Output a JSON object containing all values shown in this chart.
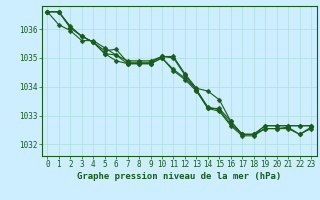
{
  "background_color": "#cceeff",
  "plot_bg_color": "#cceeff",
  "grid_color": "#aadddd",
  "line_color": "#1a5c1a",
  "marker": "D",
  "markersize": 2.5,
  "linewidth": 0.8,
  "xlabel": "Graphe pression niveau de la mer (hPa)",
  "xlabel_fontsize": 6.5,
  "tick_fontsize": 5.5,
  "ylim": [
    1031.6,
    1036.8
  ],
  "xlim": [
    -0.5,
    23.5
  ],
  "yticks": [
    1032,
    1033,
    1034,
    1035,
    1036
  ],
  "xticks": [
    0,
    1,
    2,
    3,
    4,
    5,
    6,
    7,
    8,
    9,
    10,
    11,
    12,
    13,
    14,
    15,
    16,
    17,
    18,
    19,
    20,
    21,
    22,
    23
  ],
  "series": [
    [
      1036.6,
      1036.6,
      1036.1,
      1035.75,
      1035.55,
      1035.25,
      1035.3,
      1034.85,
      1034.85,
      1034.85,
      1035.05,
      1035.05,
      1034.45,
      1033.95,
      1033.85,
      1033.55,
      1032.8,
      1032.35,
      1032.35,
      1032.65,
      1032.65,
      1032.65,
      1032.65,
      1032.65
    ],
    [
      1036.6,
      1036.6,
      1036.05,
      1035.75,
      1035.55,
      1035.15,
      1035.1,
      1034.9,
      1034.9,
      1034.9,
      1035.05,
      1035.0,
      1034.4,
      1033.9,
      1033.25,
      1033.25,
      1032.8,
      1032.35,
      1032.35,
      1032.65,
      1032.65,
      1032.65,
      1032.65,
      1032.65
    ],
    [
      1036.6,
      1036.15,
      1035.95,
      1035.6,
      1035.6,
      1035.35,
      1035.1,
      1034.8,
      1034.8,
      1034.8,
      1035.0,
      1034.6,
      1034.3,
      1033.9,
      1033.3,
      1033.2,
      1032.7,
      1032.35,
      1032.35,
      1032.55,
      1032.55,
      1032.6,
      1032.35,
      1032.6
    ],
    [
      1036.6,
      1036.6,
      1036.05,
      1035.75,
      1035.55,
      1035.15,
      1034.9,
      1034.8,
      1034.8,
      1034.8,
      1035.0,
      1034.55,
      1034.25,
      1033.85,
      1033.25,
      1033.15,
      1032.65,
      1032.3,
      1032.3,
      1032.55,
      1032.55,
      1032.55,
      1032.35,
      1032.55
    ]
  ]
}
